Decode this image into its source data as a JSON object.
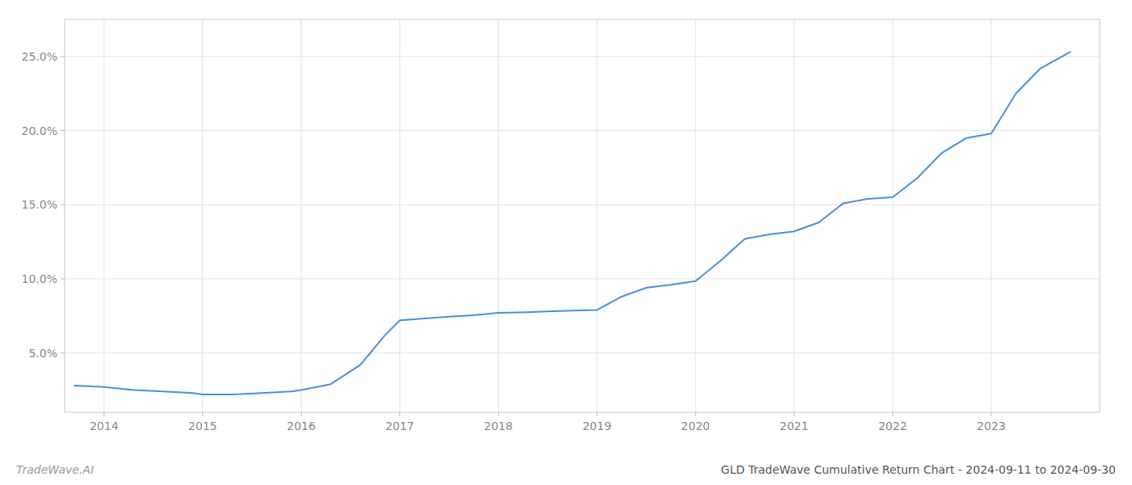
{
  "chart_data": {
    "type": "line",
    "title": "GLD TradeWave Cumulative Return Chart - 2024-09-11 to 2024-09-30",
    "annotations": [
      "TradeWave.AI"
    ],
    "x": [
      2013.7,
      2014.0,
      2014.3,
      2014.6,
      2014.9,
      2015.0,
      2015.3,
      2015.6,
      2015.9,
      2016.0,
      2016.3,
      2016.6,
      2016.85,
      2017.0,
      2017.3,
      2017.5,
      2017.75,
      2018.0,
      2018.3,
      2018.5,
      2018.75,
      2019.0,
      2019.25,
      2019.5,
      2019.75,
      2020.0,
      2020.25,
      2020.5,
      2020.75,
      2021.0,
      2021.25,
      2021.5,
      2021.75,
      2022.0,
      2022.25,
      2022.5,
      2022.75,
      2023.0,
      2023.25,
      2023.5,
      2023.8
    ],
    "values": [
      2.8,
      2.7,
      2.5,
      2.4,
      2.3,
      2.2,
      2.2,
      2.3,
      2.4,
      2.5,
      2.9,
      4.2,
      6.2,
      7.2,
      7.35,
      7.45,
      7.55,
      7.7,
      7.75,
      7.8,
      7.85,
      7.9,
      8.8,
      9.4,
      9.6,
      9.85,
      11.2,
      12.7,
      13.0,
      13.2,
      13.8,
      15.1,
      15.4,
      15.5,
      16.8,
      18.5,
      19.5,
      19.8,
      22.5,
      24.2,
      25.3
    ],
    "color": "#4a90d9",
    "xlim": [
      2013.6,
      2024.1
    ],
    "ylim": [
      1.0,
      27.5
    ],
    "xticks": [
      2014,
      2015,
      2016,
      2017,
      2018,
      2019,
      2020,
      2021,
      2022,
      2023
    ],
    "yticks": [
      {
        "value": 5.0,
        "label": "5.0%"
      },
      {
        "value": 10.0,
        "label": "10.0%"
      },
      {
        "value": 15.0,
        "label": "15.0%"
      },
      {
        "value": 20.0,
        "label": "20.0%"
      },
      {
        "value": 25.0,
        "label": "25.0%"
      }
    ],
    "grid": true
  }
}
